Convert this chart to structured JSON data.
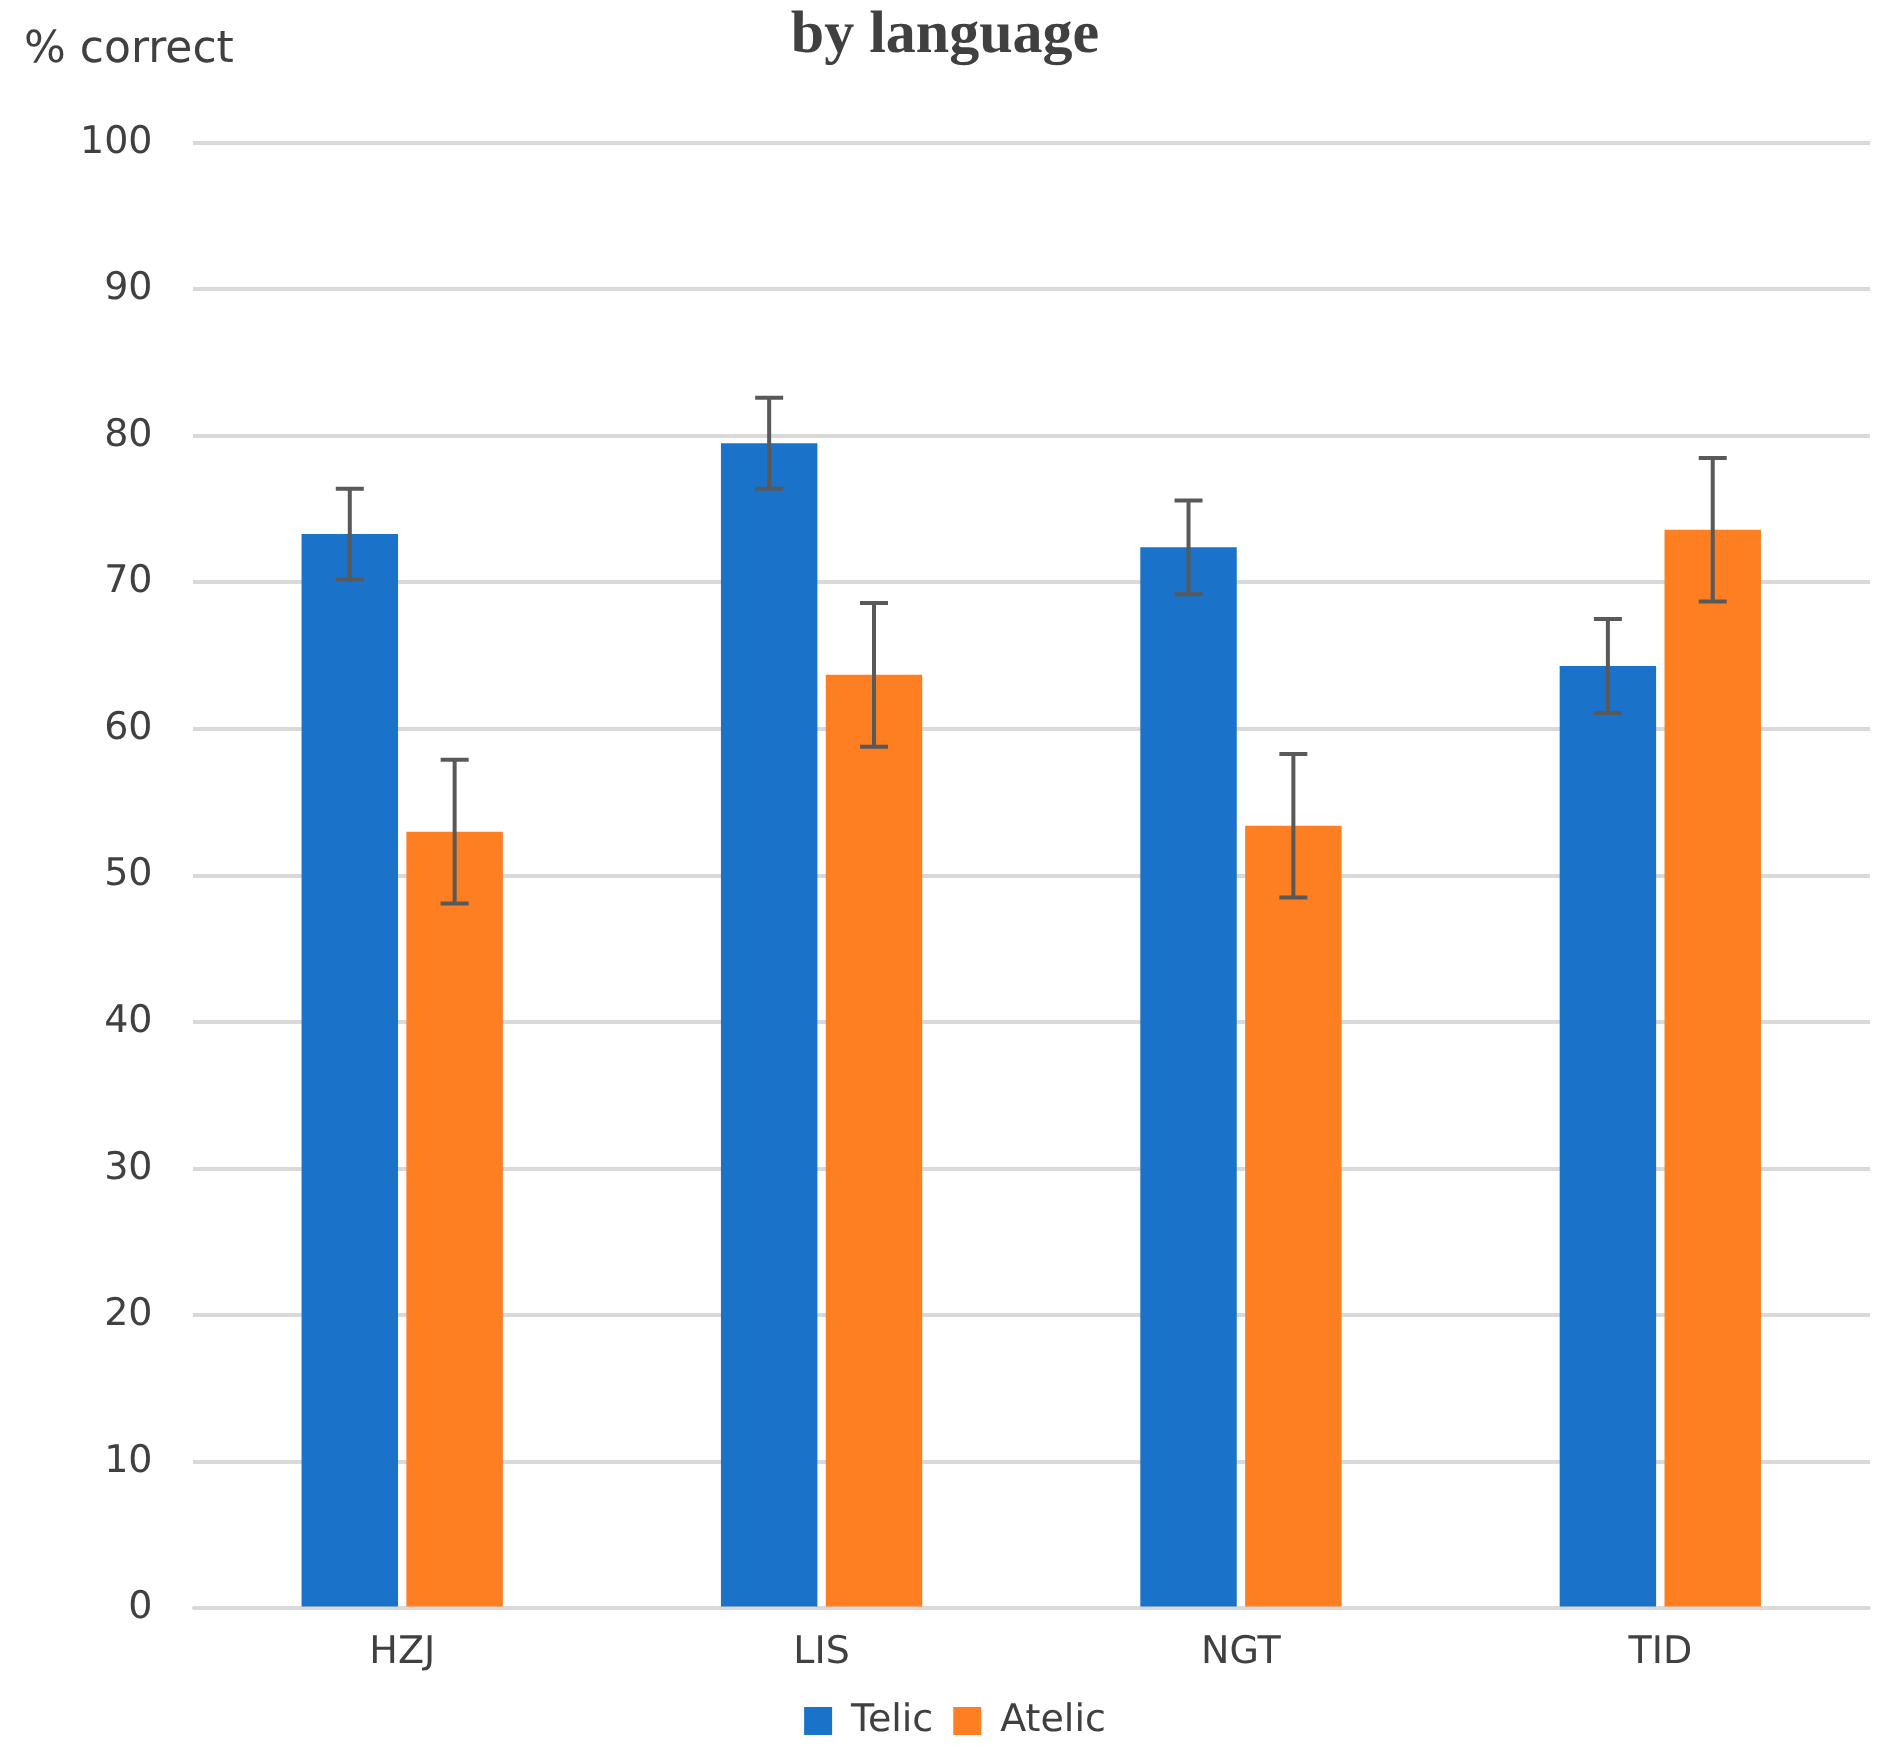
{
  "chart_data": {
    "type": "bar",
    "title": "by language",
    "ylabel": "% correct",
    "categories": [
      "HZJ",
      "LIS",
      "NGT",
      "TID"
    ],
    "series": [
      {
        "name": "Telic",
        "color": "#1a73c8",
        "values": [
          73.3,
          79.5,
          72.4,
          64.3
        ],
        "errors": [
          3.1,
          3.1,
          3.2,
          3.2
        ]
      },
      {
        "name": "Atelic",
        "color": "#fe7f22",
        "values": [
          53.0,
          63.7,
          53.4,
          73.6
        ],
        "errors": [
          4.9,
          4.9,
          4.9,
          4.9
        ]
      }
    ],
    "ylim": [
      0,
      100
    ],
    "yticks": [
      0,
      10,
      20,
      30,
      40,
      50,
      60,
      70,
      80,
      90,
      100
    ],
    "grid": "y",
    "legend": "bottom"
  }
}
